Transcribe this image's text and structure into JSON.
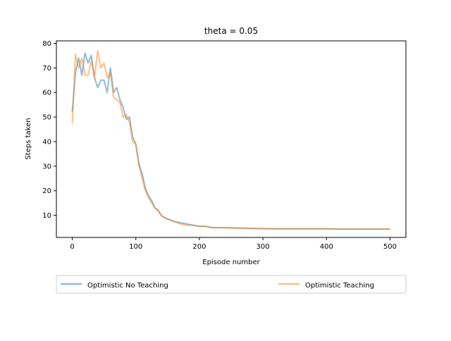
{
  "chart_data": {
    "type": "line",
    "title": "theta = 0.05",
    "xlabel": "Episode number",
    "ylabel": "Steps taken",
    "xlim": [
      -25,
      525
    ],
    "ylim": [
      1,
      81
    ],
    "xticks": [
      0,
      100,
      200,
      300,
      400,
      500
    ],
    "yticks": [
      10,
      20,
      30,
      40,
      50,
      60,
      70,
      80
    ],
    "grid": false,
    "legend_position": "below",
    "series": [
      {
        "name": "Optimistic No Teaching",
        "color": "#1f77b4",
        "x": [
          0,
          5,
          10,
          15,
          20,
          25,
          30,
          35,
          40,
          45,
          50,
          55,
          60,
          65,
          70,
          75,
          80,
          85,
          90,
          95,
          100,
          105,
          110,
          115,
          120,
          125,
          130,
          135,
          140,
          145,
          150,
          160,
          170,
          180,
          190,
          200,
          210,
          220,
          230,
          240,
          250,
          260,
          270,
          280,
          300,
          320,
          340,
          360,
          380,
          400,
          420,
          440,
          460,
          480,
          500
        ],
        "values": [
          52,
          68,
          74,
          67,
          76,
          72,
          75,
          66,
          62,
          65,
          65,
          60,
          70,
          60,
          62,
          57,
          54,
          49,
          50,
          42,
          39,
          31,
          27,
          21,
          18,
          16,
          13,
          12,
          10,
          9,
          8.5,
          7.5,
          7,
          6.5,
          6,
          5.5,
          5.5,
          5,
          5,
          5,
          5,
          4.8,
          4.8,
          4.7,
          4.6,
          4.5,
          4.5,
          4.5,
          4.5,
          4.5,
          4.4,
          4.4,
          4.4,
          4.4,
          4.4
        ]
      },
      {
        "name": "Optimistic Teaching",
        "color": "#ff7f0e",
        "x": [
          0,
          5,
          10,
          15,
          20,
          25,
          30,
          35,
          40,
          45,
          50,
          55,
          60,
          65,
          70,
          75,
          80,
          85,
          90,
          95,
          100,
          105,
          110,
          115,
          120,
          125,
          130,
          135,
          140,
          145,
          150,
          160,
          170,
          180,
          190,
          200,
          210,
          220,
          230,
          240,
          250,
          260,
          270,
          280,
          300,
          320,
          340,
          360,
          380,
          400,
          420,
          440,
          460,
          480,
          500
        ],
        "values": [
          47.5,
          75.5,
          70,
          74,
          67,
          67,
          73,
          66,
          77,
          70,
          72,
          66,
          68,
          58,
          57,
          56,
          50,
          51,
          48,
          40,
          39,
          30,
          25,
          20,
          17,
          15,
          13,
          12,
          10,
          9,
          8.5,
          7.5,
          6.5,
          6,
          6,
          5.5,
          5.5,
          5,
          5,
          5,
          4.8,
          4.8,
          4.7,
          4.6,
          4.5,
          4.5,
          4.5,
          4.5,
          4.5,
          4.5,
          4.4,
          4.4,
          4.4,
          4.4,
          4.4
        ]
      }
    ]
  }
}
